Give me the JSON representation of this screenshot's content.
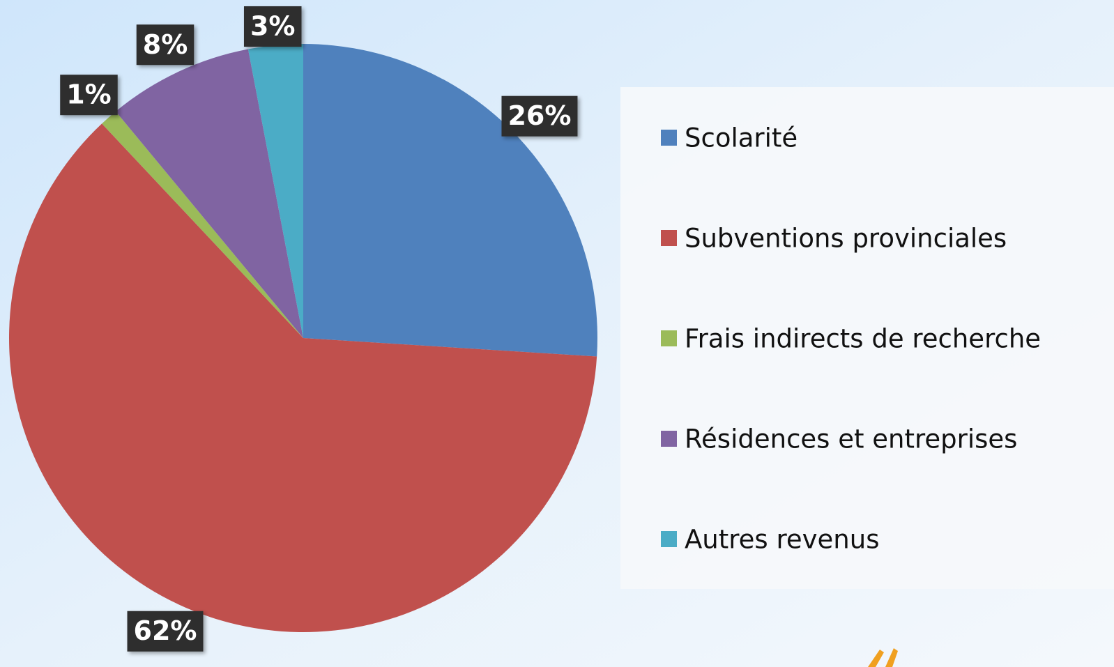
{
  "chart_data": {
    "type": "pie",
    "categories": [
      "Scolarité",
      "Subventions provinciales",
      "Frais indirects de recherche",
      "Résidences et entreprises",
      "Autres revenus"
    ],
    "values": [
      26,
      62,
      1,
      8,
      3
    ],
    "value_labels": [
      "26%",
      "62%",
      "1%",
      "8%",
      "3%"
    ],
    "colors": [
      "#4f81bd",
      "#c0504d",
      "#9bbb59",
      "#8064a2",
      "#4bacc6"
    ],
    "legend": "right"
  }
}
